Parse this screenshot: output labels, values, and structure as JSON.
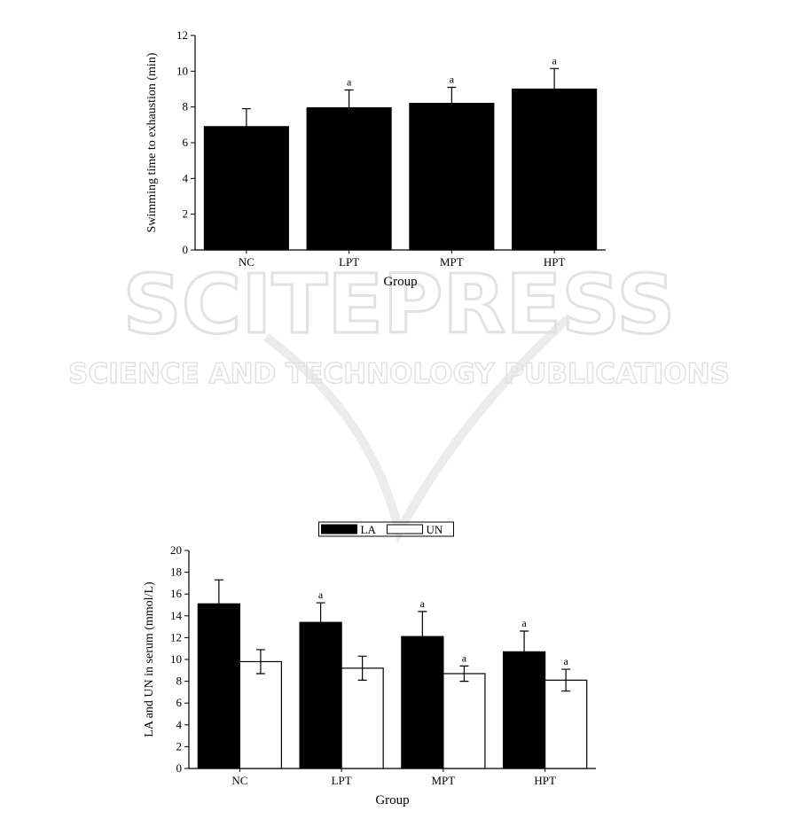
{
  "watermark": {
    "title": "SCITEPRESS",
    "subtitle": "SCIENCE AND TECHNOLOGY PUBLICATIONS"
  },
  "chart_data": [
    {
      "type": "bar",
      "y_label": "Swimming time to exhaustion (min)",
      "x_label": "Group",
      "categories": [
        "NC",
        "LPT",
        "MPT",
        "HPT"
      ],
      "series": [
        {
          "color": "#000000",
          "values": [
            6.9,
            7.95,
            8.2,
            9.0
          ],
          "errors": [
            1.0,
            1.0,
            0.9,
            1.15
          ],
          "annotations": [
            null,
            "a",
            "a",
            "a"
          ]
        }
      ],
      "error_bars": "upper",
      "ylim": [
        0,
        12
      ],
      "yticks": [
        0,
        2,
        4,
        6,
        8,
        10,
        12
      ]
    },
    {
      "type": "bar",
      "y_label": "LA and UN in serum (mmol/L)",
      "x_label": "Group",
      "categories": [
        "NC",
        "LPT",
        "MPT",
        "HPT"
      ],
      "series": [
        {
          "name": "LA",
          "color": "#000000",
          "values": [
            15.1,
            13.4,
            12.1,
            10.7
          ],
          "errors": [
            2.2,
            1.8,
            2.3,
            1.9
          ],
          "annotations": [
            null,
            "a",
            "a",
            "a"
          ]
        },
        {
          "name": "UN",
          "color": "#ffffff",
          "values": [
            9.8,
            9.2,
            8.7,
            8.1
          ],
          "errors": [
            1.1,
            1.1,
            0.7,
            1.0
          ],
          "annotations": [
            null,
            null,
            "a",
            "a"
          ]
        }
      ],
      "error_bars": "both",
      "legend": "top",
      "ylim": [
        0,
        20
      ],
      "yticks": [
        0,
        2,
        4,
        6,
        8,
        10,
        12,
        14,
        16,
        18,
        20
      ]
    }
  ]
}
